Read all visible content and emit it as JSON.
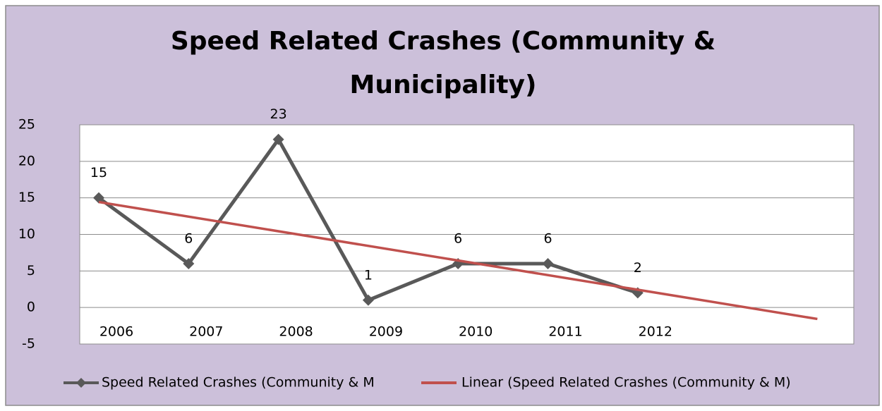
{
  "chart_data": {
    "type": "line",
    "title": [
      "Speed Related Crashes (Community &",
      "Municipality)"
    ],
    "categories": [
      "2006",
      "2007",
      "2008",
      "2009",
      "2010",
      "2011",
      "2012"
    ],
    "series": [
      {
        "name": "Speed Related Crashes (Community & M",
        "color": "#595959",
        "values": [
          15,
          6,
          23,
          1,
          6,
          6,
          2
        ]
      }
    ],
    "trendline": {
      "name": "Linear (Speed Related Crashes (Community & M)",
      "color": "#c0504d",
      "x": [
        0,
        8
      ],
      "values": [
        14.43,
        -1.57
      ]
    },
    "ylim": [
      -5,
      25
    ],
    "yticks": [
      -5,
      0,
      5,
      10,
      15,
      20,
      25
    ],
    "grid": true
  }
}
